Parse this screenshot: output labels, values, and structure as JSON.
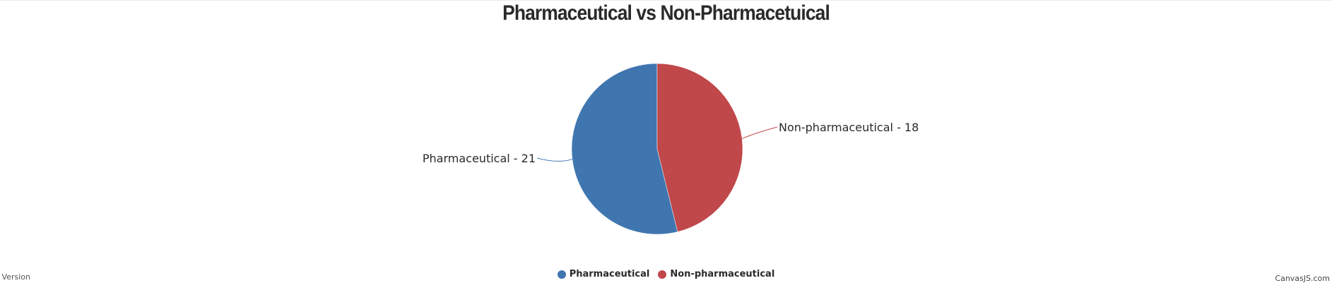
{
  "chart_data": {
    "type": "pie",
    "title": "Pharmaceutical vs Non-Pharmacetuical",
    "slices": [
      {
        "label": "Pharmaceutical",
        "value": 21,
        "color": "#4076B0",
        "data_label": "Pharmaceutical - 21"
      },
      {
        "label": "Non-pharmaceutical",
        "value": 18,
        "color": "#C0474A",
        "data_label": "Non-pharmaceutical - 18"
      }
    ],
    "legend": {
      "placement": "bottom-center",
      "entries": [
        "Pharmaceutical",
        "Non-pharmaceutical"
      ]
    }
  },
  "footer": {
    "left_text": "l Version",
    "right_text": "CanvasJS.com"
  }
}
